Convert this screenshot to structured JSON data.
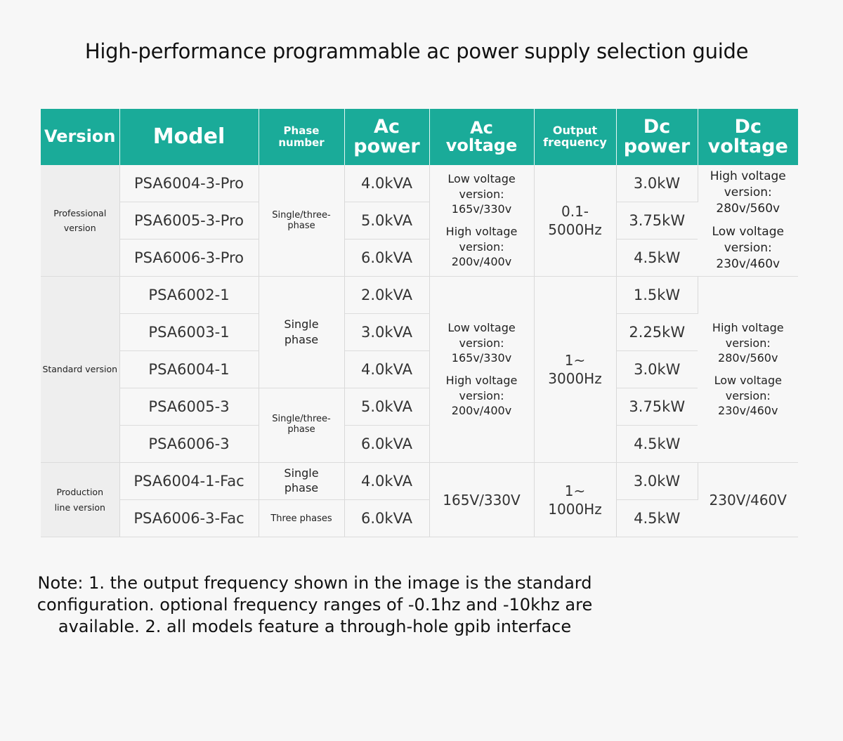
{
  "title": "High-performance programmable ac power supply selection guide",
  "headers": {
    "version": "Version",
    "model": "Model",
    "phase": "Phase number",
    "ac_power_1": "Ac",
    "ac_power_2": "power",
    "ac_voltage_1": "Ac",
    "ac_voltage_2": "voltage",
    "freq_1": "Output",
    "freq_2": "frequency",
    "dc_power_1": "Dc",
    "dc_power_2": "power",
    "dc_voltage_1": "Dc",
    "dc_voltage_2": "voltage"
  },
  "groups": {
    "professional": {
      "version": "Professional version",
      "phase": "Single/three-phase",
      "ac_voltage": [
        "Low voltage",
        "version:",
        "165v/330v",
        "High voltage",
        "version:",
        "200v/400v"
      ],
      "frequency": [
        "0.1-",
        "5000Hz"
      ],
      "dc_voltage": [
        "High voltage",
        "version:",
        "280v/560v",
        "Low voltage",
        "version:",
        "230v/460v"
      ],
      "rows": [
        {
          "model": "PSA6004-3-Pro",
          "ac_power": "4.0kVA",
          "dc_power": "3.0kW"
        },
        {
          "model": "PSA6005-3-Pro",
          "ac_power": "5.0kVA",
          "dc_power": "3.75kW"
        },
        {
          "model": "PSA6006-3-Pro",
          "ac_power": "6.0kVA",
          "dc_power": "4.5kW"
        }
      ]
    },
    "standard": {
      "version": "Standard version",
      "phase_single": [
        "Single",
        "phase"
      ],
      "phase_three": "Single/three-phase",
      "ac_voltage": [
        "Low voltage",
        "version:",
        "165v/330v",
        "High voltage",
        "version:",
        "200v/400v"
      ],
      "frequency": [
        "1~",
        "3000Hz"
      ],
      "dc_voltage": [
        "High voltage",
        "version:",
        "280v/560v",
        "Low voltage",
        "version:",
        "230v/460v"
      ],
      "rows": [
        {
          "model": "PSA6002-1",
          "ac_power": "2.0kVA",
          "dc_power": "1.5kW"
        },
        {
          "model": "PSA6003-1",
          "ac_power": "3.0kVA",
          "dc_power": "2.25kW"
        },
        {
          "model": "PSA6004-1",
          "ac_power": "4.0kVA",
          "dc_power": "3.0kW"
        },
        {
          "model": "PSA6005-3",
          "ac_power": "5.0kVA",
          "dc_power": "3.75kW"
        },
        {
          "model": "PSA6006-3",
          "ac_power": "6.0kVA",
          "dc_power": "4.5kW"
        }
      ]
    },
    "production": {
      "version": [
        "Production",
        "line version"
      ],
      "phase_1": [
        "Single",
        "phase"
      ],
      "phase_2": "Three phases",
      "ac_voltage": "165V/330V",
      "frequency": [
        "1~",
        "1000Hz"
      ],
      "dc_voltage": "230V/460V",
      "rows": [
        {
          "model": "PSA6004-1-Fac",
          "ac_power": "4.0kVA",
          "dc_power": "3.0kW"
        },
        {
          "model": "PSA6006-3-Fac",
          "ac_power": "6.0kVA",
          "dc_power": "4.5kW"
        }
      ]
    }
  },
  "note": "Note: 1. the output frequency shown in the image is the standard configuration. optional frequency ranges of -0.1hz and -10khz are available. 2. all models feature a through-hole gpib interface"
}
